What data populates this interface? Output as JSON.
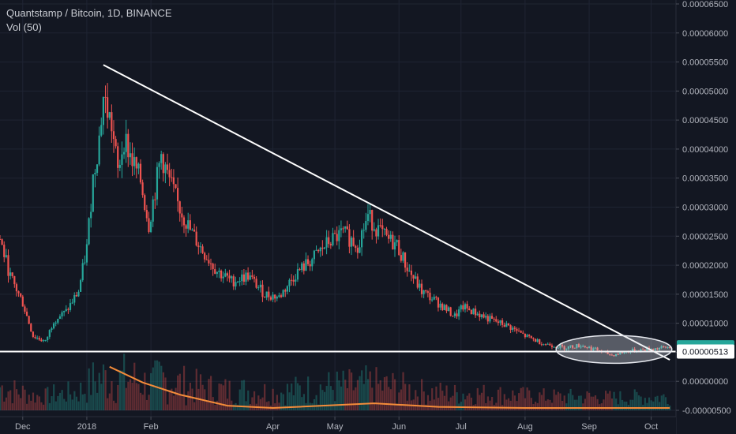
{
  "legend": {
    "title": "Quantstamp / Bitcoin, 1D, BINANCE",
    "volume": "Vol (50)"
  },
  "colors": {
    "background": "#131722",
    "grid": "#1f2433",
    "up": "#26a69a",
    "down": "#ef5350",
    "volume_ma": "#f48c3a",
    "trendline": "#ffffff",
    "axis_text": "#b2b5be",
    "last_price_bg": "#26a69a",
    "support_price_bg": "#ffffff"
  },
  "chart_data": {
    "type": "candlestick",
    "title": "Quantstamp / Bitcoin, 1D, BINANCE",
    "y_axis": {
      "ticks": [
        "0.00006500",
        "0.00006000",
        "0.00005500",
        "0.00005000",
        "0.00004500",
        "0.00004000",
        "0.00003500",
        "0.00003000",
        "0.00002500",
        "0.00002000",
        "0.00001500",
        "0.00001000",
        "0.00000500",
        "0.00000000",
        "-0.00000500"
      ],
      "range": [
        -5e-06,
        6.5e-05
      ]
    },
    "x_axis": {
      "ticks": [
        "Dec",
        "2018",
        "Feb",
        "Apr",
        "May",
        "Jun",
        "Jul",
        "Aug",
        "Sep",
        "Oct"
      ],
      "tick_dates": [
        "2017-12-01",
        "2018-01-01",
        "2018-02-01",
        "2018-04-01",
        "2018-05-01",
        "2018-06-01",
        "2018-07-01",
        "2018-08-01",
        "2018-09-01",
        "2018-10-01"
      ],
      "range": [
        "2017-11-20",
        "2018-10-13"
      ]
    },
    "price_path": [
      [
        "2017-11-20",
        2.45e-05
      ],
      [
        "2017-11-25",
        1.8e-05
      ],
      [
        "2017-12-01",
        1.35e-05
      ],
      [
        "2017-12-06",
        7.8e-06
      ],
      [
        "2017-12-12",
        6.8e-06
      ],
      [
        "2017-12-16",
        1.05e-05
      ],
      [
        "2017-12-22",
        1.2e-05
      ],
      [
        "2017-12-28",
        1.55e-05
      ],
      [
        "2018-01-01",
        2.3e-05
      ],
      [
        "2018-01-04",
        3.5e-05
      ],
      [
        "2018-01-07",
        4.2e-05
      ],
      [
        "2018-01-09",
        4.9e-05
      ],
      [
        "2018-01-13",
        4.4e-05
      ],
      [
        "2018-01-16",
        3.6e-05
      ],
      [
        "2018-01-19",
        4.2e-05
      ],
      [
        "2018-01-23",
        3.8e-05
      ],
      [
        "2018-01-27",
        3.45e-05
      ],
      [
        "2018-01-31",
        2.7e-05
      ],
      [
        "2018-02-03",
        3.3e-05
      ],
      [
        "2018-02-06",
        3.9e-05
      ],
      [
        "2018-02-09",
        3.55e-05
      ],
      [
        "2018-02-14",
        3.05e-05
      ],
      [
        "2018-02-20",
        2.6e-05
      ],
      [
        "2018-02-26",
        2.25e-05
      ],
      [
        "2018-03-05",
        1.9e-05
      ],
      [
        "2018-03-12",
        1.72e-05
      ],
      [
        "2018-03-20",
        1.82e-05
      ],
      [
        "2018-03-28",
        1.5e-05
      ],
      [
        "2018-04-04",
        1.45e-05
      ],
      [
        "2018-04-12",
        1.85e-05
      ],
      [
        "2018-04-20",
        2.1e-05
      ],
      [
        "2018-04-28",
        2.4e-05
      ],
      [
        "2018-05-05",
        2.55e-05
      ],
      [
        "2018-05-12",
        2.35e-05
      ],
      [
        "2018-05-17",
        2.85e-05
      ],
      [
        "2018-05-21",
        2.65e-05
      ],
      [
        "2018-05-26",
        2.45e-05
      ],
      [
        "2018-05-31",
        2.35e-05
      ],
      [
        "2018-06-05",
        1.95e-05
      ],
      [
        "2018-06-12",
        1.55e-05
      ],
      [
        "2018-06-20",
        1.35e-05
      ],
      [
        "2018-06-28",
        1.12e-05
      ],
      [
        "2018-07-02",
        1.28e-05
      ],
      [
        "2018-07-08",
        1.18e-05
      ],
      [
        "2018-07-16",
        1.05e-05
      ],
      [
        "2018-07-24",
        9.5e-06
      ],
      [
        "2018-08-01",
        7.8e-06
      ],
      [
        "2018-08-10",
        6.5e-06
      ],
      [
        "2018-08-20",
        5.8e-06
      ],
      [
        "2018-08-28",
        6.2e-06
      ],
      [
        "2018-09-04",
        5.5e-06
      ],
      [
        "2018-09-12",
        4.5e-06
      ],
      [
        "2018-09-20",
        5.2e-06
      ],
      [
        "2018-09-28",
        5.5e-06
      ],
      [
        "2018-10-05",
        5.7e-06
      ],
      [
        "2018-10-10",
        5.9e-06
      ]
    ],
    "volume_ma_path": [
      [
        "2018-01-12",
        2.5e-06
      ],
      [
        "2018-01-28",
        -2e-07
      ],
      [
        "2018-02-15",
        -2.3e-06
      ],
      [
        "2018-03-10",
        -4.2e-06
      ],
      [
        "2018-04-01",
        -4.6e-06
      ],
      [
        "2018-05-20",
        -3.8e-06
      ],
      [
        "2018-06-20",
        -4.4e-06
      ],
      [
        "2018-08-01",
        -4.6e-06
      ],
      [
        "2018-10-10",
        -4.6e-06
      ]
    ],
    "annotations": {
      "trendline": [
        [
          "2018-01-09",
          5.45e-05
        ],
        [
          "2018-10-10",
          3.7e-06
        ]
      ],
      "support_level": 5.13e-06,
      "ellipse_center": [
        "2018-09-13",
        5.5e-06
      ],
      "ellipse_x_radius_days": 28,
      "ellipse_y_radius": 2.4e-06
    },
    "price_tags": [
      {
        "label": "0.00000586",
        "value": 5.86e-06,
        "style": "last"
      },
      {
        "label": "0.00000513",
        "value": 5.13e-06,
        "style": "support"
      }
    ]
  }
}
